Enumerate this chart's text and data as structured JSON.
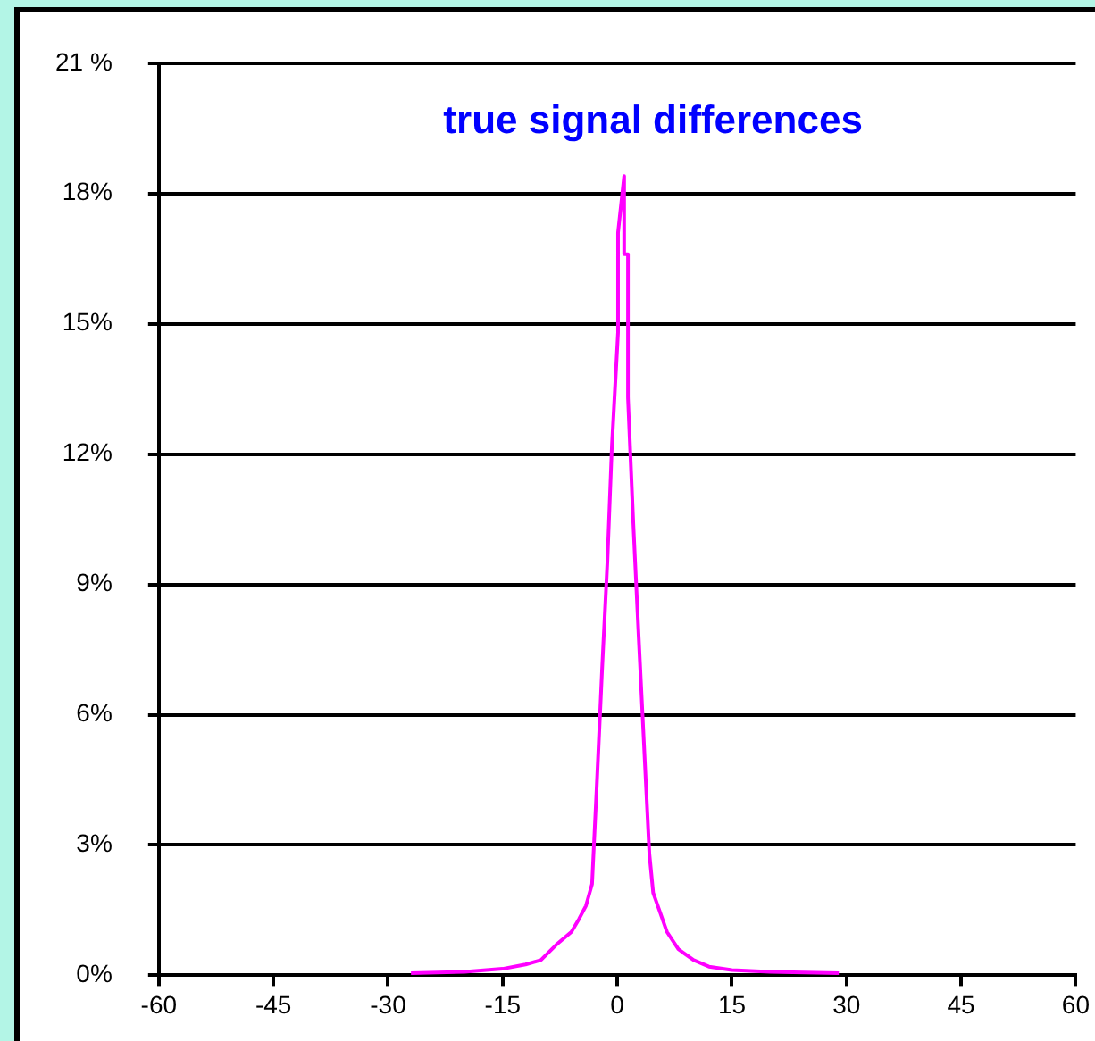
{
  "chart_data": {
    "type": "line",
    "title": "true signal differences",
    "x": [
      -27,
      -20,
      -15,
      -12,
      -10,
      -8,
      -6,
      -5,
      -4.1,
      -3.3,
      -2.7,
      -2.0,
      -1.3,
      -0.7,
      0.1,
      0.1,
      0.9,
      0.9,
      1.4,
      1.4,
      2.1,
      2.8,
      3.5,
      4.2,
      4.7,
      5.5,
      6.5,
      8,
      10,
      12,
      15,
      20,
      29
    ],
    "series": [
      {
        "color": "#ff00ff",
        "values": [
          0.05,
          0.08,
          0.15,
          0.25,
          0.35,
          0.7,
          1.0,
          1.3,
          1.6,
          2.1,
          4.3,
          7.0,
          9.5,
          12.2,
          14.8,
          17.1,
          18.4,
          16.6,
          16.6,
          13.3,
          10.4,
          7.8,
          5.3,
          2.8,
          1.9,
          1.5,
          1.0,
          0.6,
          0.35,
          0.2,
          0.12,
          0.08,
          0.05
        ]
      }
    ],
    "xlim": [
      -60,
      60
    ],
    "xticks": [
      -60,
      -45,
      -30,
      -15,
      0,
      15,
      30,
      45,
      60
    ],
    "ylim": [
      0,
      21
    ],
    "yticks": [
      {
        "value": 0,
        "label": "0%"
      },
      {
        "value": 3,
        "label": "3%"
      },
      {
        "value": 6,
        "label": "6%"
      },
      {
        "value": 9,
        "label": "9%"
      },
      {
        "value": 12,
        "label": "12%"
      },
      {
        "value": 15,
        "label": "15%"
      },
      {
        "value": 18,
        "label": "18%"
      },
      {
        "value": 21,
        "label": "21 %"
      }
    ],
    "grid": "y",
    "legend": false,
    "marker": "none",
    "line_style": "solid"
  }
}
